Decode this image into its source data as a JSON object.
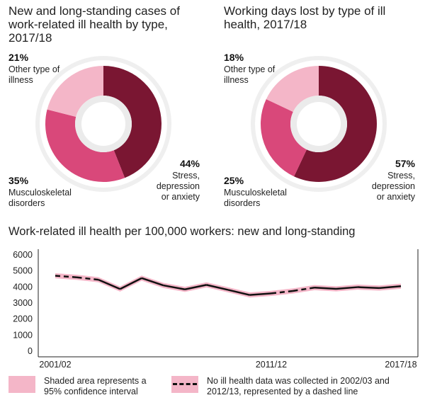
{
  "chart_data": [
    {
      "type": "pie",
      "title": "New and long-standing cases of work-related ill health by type, 2017/18",
      "slices": [
        {
          "label": "Stress, depression or anxiety",
          "value": 44,
          "value_label": "44%",
          "color": "#7a1632"
        },
        {
          "label": "Musculoskeletal disorders",
          "value": 35,
          "value_label": "35%",
          "color": "#d9487a"
        },
        {
          "label": "Other type of illness",
          "value": 21,
          "value_label": "21%",
          "color": "#f4b6c8"
        }
      ]
    },
    {
      "type": "pie",
      "title": "Working days lost by type of ill health, 2017/18",
      "slices": [
        {
          "label": "Stress, depression or anxiety",
          "value": 57,
          "value_label": "57%",
          "color": "#7a1632"
        },
        {
          "label": "Musculoskeletal disorders",
          "value": 25,
          "value_label": "25%",
          "color": "#d9487a"
        },
        {
          "label": "Other type of illness",
          "value": 18,
          "value_label": "18%",
          "color": "#f4b6c8"
        }
      ]
    },
    {
      "type": "line",
      "title": "Work-related ill health per 100,000 workers: new and long-standing",
      "x": [
        "2001/02",
        "2002/03",
        "2003/04",
        "2004/05",
        "2005/06",
        "2006/07",
        "2007/08",
        "2008/09",
        "2009/10",
        "2010/11",
        "2011/12",
        "2012/13",
        "2013/14",
        "2014/15",
        "2015/16",
        "2016/17",
        "2017/18"
      ],
      "y": [
        4700,
        4600,
        4450,
        3870,
        4550,
        4100,
        3850,
        4130,
        3820,
        3500,
        3600,
        3750,
        3960,
        3880,
        3990,
        3930,
        4050
      ],
      "band_halfwidth": 160,
      "dashed_x": [
        "2002/03",
        "2012/13"
      ],
      "xtick_labels": [
        "2001/02",
        "2011/12",
        "2017/18"
      ],
      "yticks": [
        0,
        1000,
        2000,
        3000,
        4000,
        5000,
        6000
      ],
      "ylim": [
        0,
        6000
      ],
      "line_color": "#111111",
      "band_color": "#f4b6c8"
    }
  ],
  "legend": {
    "shaded": "Shaded area represents a 95% confidence interval",
    "dashed": "No ill health data was collected in 2002/03 and 2012/13, represented by a dashed line"
  }
}
